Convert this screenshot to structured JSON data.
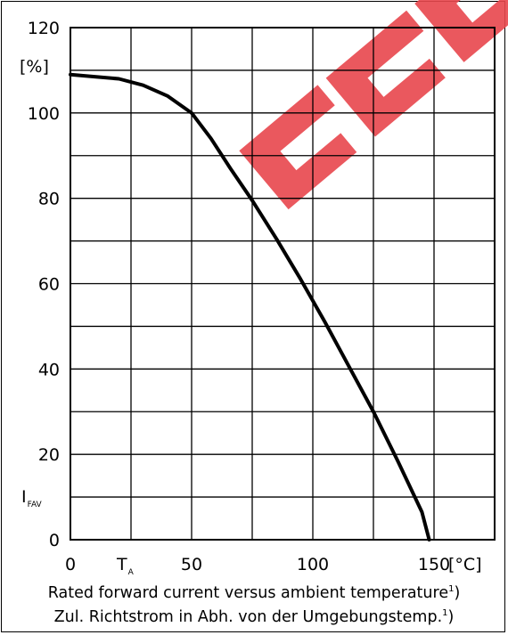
{
  "chart_data": {
    "type": "line",
    "title": "",
    "xlabel": "T",
    "xlabel_subscript": "A",
    "xunit": "[°C]",
    "ylabel": "I",
    "ylabel_subscript": "FAV",
    "yunit": "[%]",
    "xlim": [
      0,
      175
    ],
    "ylim": [
      0,
      120
    ],
    "x_ticks": [
      0,
      50,
      100,
      150
    ],
    "y_ticks": [
      0,
      20,
      40,
      60,
      80,
      100,
      120
    ],
    "grid": true,
    "series": [
      {
        "x": [
          0,
          10,
          20,
          30,
          40,
          50,
          58,
          66,
          75,
          85,
          95,
          105,
          115,
          125,
          135,
          145,
          148
        ],
        "y": [
          109,
          108.5,
          108,
          106.5,
          104,
          100,
          94,
          87,
          79.5,
          70.5,
          61,
          51,
          40.5,
          30,
          18.5,
          6.5,
          0
        ]
      }
    ]
  },
  "caption": {
    "line1": "Rated forward current versus ambient temperature",
    "line1_note": "1",
    "line1_end": ")",
    "line2": "Zul. Richtstrom in Abh. von der Umgebungstemp.",
    "line2_note": "1",
    "line2_end": ")"
  },
  "watermark": {
    "description": "red diagonal logo watermark",
    "color": "#e8474d"
  }
}
